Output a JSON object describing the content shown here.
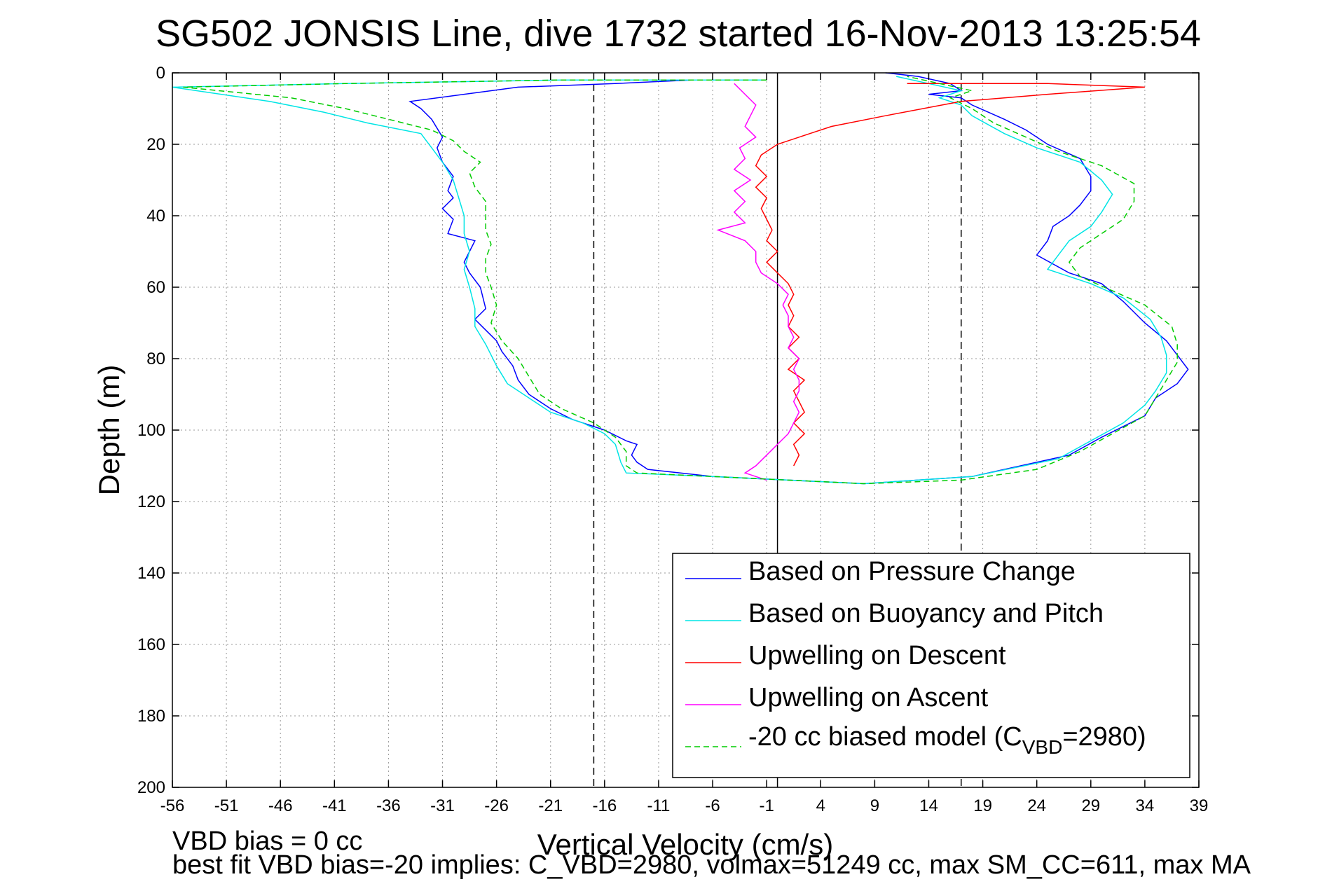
{
  "chart_data": {
    "type": "line",
    "title": "SG502 JONSIS Line, dive 1732 started 16-Nov-2013 13:25:54",
    "xlabel": "Vertical Velocity (cm/s)",
    "ylabel": "Depth (m)",
    "xlim": [
      -56,
      39
    ],
    "ylim": [
      0,
      200
    ],
    "y_reversed": true,
    "grid": true,
    "x_ticks": [
      -56,
      -51,
      -46,
      -41,
      -36,
      -31,
      -26,
      -21,
      -16,
      -11,
      -6,
      -1,
      4,
      9,
      14,
      19,
      24,
      29,
      34,
      39
    ],
    "y_ticks": [
      0,
      20,
      40,
      60,
      80,
      100,
      120,
      140,
      160,
      180,
      200
    ],
    "reference_lines": [
      {
        "x": -17,
        "style": "dashed"
      },
      {
        "x": 0,
        "style": "solid"
      },
      {
        "x": 17,
        "style": "dashed"
      }
    ],
    "legend_position": "bottom-right",
    "series": [
      {
        "name": "Based on Pressure Change",
        "color": "#0000ff",
        "style": "solid",
        "points": [
          [
            -1,
            2
          ],
          [
            -8,
            2
          ],
          [
            -15,
            3
          ],
          [
            -24,
            4
          ],
          [
            -34,
            8
          ],
          [
            -33,
            10
          ],
          [
            -32,
            13
          ],
          [
            -31,
            18
          ],
          [
            -31.5,
            21
          ],
          [
            -31,
            25
          ],
          [
            -30,
            29
          ],
          [
            -30.5,
            33
          ],
          [
            -30,
            35
          ],
          [
            -31,
            38
          ],
          [
            -30,
            41
          ],
          [
            -30.5,
            45
          ],
          [
            -28,
            47
          ],
          [
            -28.5,
            50
          ],
          [
            -29,
            53
          ],
          [
            -28.5,
            56
          ],
          [
            -27.5,
            60
          ],
          [
            -27,
            66
          ],
          [
            -28,
            69
          ],
          [
            -27,
            72
          ],
          [
            -26,
            75
          ],
          [
            -25.5,
            78
          ],
          [
            -24.5,
            82
          ],
          [
            -24,
            86
          ],
          [
            -23,
            90
          ],
          [
            -21,
            94
          ],
          [
            -19,
            97
          ],
          [
            -16,
            100
          ],
          [
            -14,
            103
          ],
          [
            -13,
            104
          ],
          [
            -13.5,
            107
          ],
          [
            -13,
            109
          ],
          [
            -12,
            111
          ],
          [
            -6,
            113
          ],
          [
            1,
            114
          ],
          [
            8,
            115
          ],
          [
            18,
            113
          ],
          [
            27,
            107
          ],
          [
            30,
            102
          ],
          [
            34,
            96
          ],
          [
            35,
            91
          ],
          [
            37,
            87
          ],
          [
            38,
            83
          ],
          [
            37,
            79
          ],
          [
            36,
            75
          ],
          [
            34,
            70
          ],
          [
            32,
            64
          ],
          [
            30,
            59
          ],
          [
            27,
            56
          ],
          [
            24,
            51
          ],
          [
            25,
            47
          ],
          [
            25.5,
            43
          ],
          [
            27,
            40
          ],
          [
            28,
            37
          ],
          [
            29,
            33
          ],
          [
            29,
            29
          ],
          [
            28,
            24
          ],
          [
            25,
            20
          ],
          [
            23,
            16
          ],
          [
            21,
            13
          ],
          [
            18,
            9
          ],
          [
            17,
            7
          ],
          [
            14,
            6
          ],
          [
            17,
            5
          ],
          [
            16,
            3
          ],
          [
            13,
            1
          ],
          [
            10,
            0
          ]
        ]
      },
      {
        "name": "Based on Buoyancy and Pitch",
        "color": "#00e5e5",
        "style": "solid",
        "points": [
          [
            -1,
            2
          ],
          [
            -20,
            2
          ],
          [
            -40,
            3
          ],
          [
            -56,
            4
          ],
          [
            -47,
            8
          ],
          [
            -42,
            11
          ],
          [
            -38,
            14
          ],
          [
            -33,
            17
          ],
          [
            -32,
            21
          ],
          [
            -31,
            25
          ],
          [
            -30,
            30
          ],
          [
            -29.5,
            35
          ],
          [
            -29,
            40
          ],
          [
            -29,
            45
          ],
          [
            -28.5,
            50
          ],
          [
            -29,
            55
          ],
          [
            -28.5,
            60
          ],
          [
            -28,
            66
          ],
          [
            -28,
            71
          ],
          [
            -27,
            76
          ],
          [
            -26,
            82
          ],
          [
            -25,
            87
          ],
          [
            -23,
            91
          ],
          [
            -21,
            95
          ],
          [
            -18,
            98
          ],
          [
            -16,
            101
          ],
          [
            -15,
            104
          ],
          [
            -14.5,
            109
          ],
          [
            -14,
            112
          ],
          [
            -6,
            113
          ],
          [
            1,
            114
          ],
          [
            8,
            115
          ],
          [
            18,
            113
          ],
          [
            26,
            108
          ],
          [
            29,
            103
          ],
          [
            32,
            98
          ],
          [
            34,
            93
          ],
          [
            35,
            89
          ],
          [
            36,
            84
          ],
          [
            36,
            79
          ],
          [
            35.5,
            74
          ],
          [
            34.5,
            69
          ],
          [
            32,
            63
          ],
          [
            29,
            59
          ],
          [
            25,
            55
          ],
          [
            26,
            51
          ],
          [
            27,
            47
          ],
          [
            29,
            43
          ],
          [
            30,
            39
          ],
          [
            31,
            34
          ],
          [
            30,
            30
          ],
          [
            28,
            25
          ],
          [
            24,
            21
          ],
          [
            21,
            17
          ],
          [
            18,
            12
          ],
          [
            17,
            9
          ],
          [
            15,
            7
          ],
          [
            17,
            5
          ],
          [
            14,
            3
          ],
          [
            11,
            1
          ]
        ]
      },
      {
        "name": "Upwelling on Descent",
        "color": "#ff0000",
        "style": "solid",
        "points": [
          [
            12,
            3
          ],
          [
            25,
            3
          ],
          [
            34,
            4
          ],
          [
            25,
            6
          ],
          [
            17,
            8
          ],
          [
            10,
            12
          ],
          [
            5,
            15
          ],
          [
            3,
            17
          ],
          [
            0,
            20
          ],
          [
            -1.5,
            23
          ],
          [
            -2,
            26
          ],
          [
            -1,
            29
          ],
          [
            -2,
            32
          ],
          [
            -1,
            35
          ],
          [
            -1.5,
            38
          ],
          [
            -1,
            41
          ],
          [
            -0.5,
            44
          ],
          [
            -1,
            47
          ],
          [
            0,
            50
          ],
          [
            -1,
            53
          ],
          [
            0,
            56
          ],
          [
            1,
            59
          ],
          [
            1.5,
            62
          ],
          [
            1,
            65
          ],
          [
            1.5,
            68
          ],
          [
            1,
            71
          ],
          [
            2,
            74
          ],
          [
            1,
            77
          ],
          [
            2,
            80
          ],
          [
            1,
            83
          ],
          [
            2.5,
            86
          ],
          [
            1.5,
            89
          ],
          [
            2,
            92
          ],
          [
            2.5,
            95
          ],
          [
            1.5,
            98
          ],
          [
            2.5,
            101
          ],
          [
            1.5,
            104
          ],
          [
            2,
            107
          ],
          [
            1.5,
            110
          ]
        ]
      },
      {
        "name": "Upwelling on Ascent",
        "color": "#ff00ff",
        "style": "solid",
        "points": [
          [
            -4,
            3
          ],
          [
            -3,
            6
          ],
          [
            -2,
            9
          ],
          [
            -2.5,
            12
          ],
          [
            -3,
            15
          ],
          [
            -2,
            18
          ],
          [
            -3.5,
            21
          ],
          [
            -3,
            24
          ],
          [
            -4,
            27
          ],
          [
            -2.5,
            30
          ],
          [
            -4,
            33
          ],
          [
            -3,
            36
          ],
          [
            -4,
            39
          ],
          [
            -3,
            42
          ],
          [
            -5.5,
            44
          ],
          [
            -3,
            47
          ],
          [
            -2,
            50
          ],
          [
            -2,
            53
          ],
          [
            -1.5,
            56
          ],
          [
            0,
            59
          ],
          [
            1,
            62
          ],
          [
            0.5,
            65
          ],
          [
            1,
            68
          ],
          [
            1,
            71
          ],
          [
            1.5,
            74
          ],
          [
            1,
            77
          ],
          [
            2,
            80
          ],
          [
            1.5,
            83
          ],
          [
            2,
            86
          ],
          [
            2,
            89
          ],
          [
            1.5,
            92
          ],
          [
            2,
            95
          ],
          [
            1.5,
            98
          ],
          [
            1,
            101
          ],
          [
            0,
            104
          ],
          [
            -1,
            107
          ],
          [
            -2,
            110
          ],
          [
            -3,
            112
          ],
          [
            -2,
            113
          ],
          [
            -1,
            114
          ]
        ]
      },
      {
        "name": "-20 cc biased model (C_VBD=2980)",
        "legend_label_main": "-20 cc biased model (C",
        "legend_label_sub": "VBD",
        "legend_label_tail": "=2980)",
        "color": "#00cc00",
        "style": "dashed",
        "points": [
          [
            -1,
            2
          ],
          [
            -20,
            2
          ],
          [
            -40,
            3
          ],
          [
            -55,
            4
          ],
          [
            -45,
            7
          ],
          [
            -40,
            10
          ],
          [
            -36,
            13
          ],
          [
            -32,
            16
          ],
          [
            -30,
            19
          ],
          [
            -29,
            22
          ],
          [
            -27.5,
            25
          ],
          [
            -28.5,
            28
          ],
          [
            -28,
            32
          ],
          [
            -27,
            36
          ],
          [
            -27,
            40
          ],
          [
            -27,
            44
          ],
          [
            -26.5,
            48
          ],
          [
            -27,
            52
          ],
          [
            -27,
            56
          ],
          [
            -26.5,
            60
          ],
          [
            -26,
            65
          ],
          [
            -26.5,
            70
          ],
          [
            -25.5,
            75
          ],
          [
            -24,
            80
          ],
          [
            -23,
            85
          ],
          [
            -22,
            90
          ],
          [
            -20,
            94
          ],
          [
            -17,
            98
          ],
          [
            -15,
            102
          ],
          [
            -14,
            106
          ],
          [
            -14,
            110
          ],
          [
            -13,
            112
          ],
          [
            -6,
            113
          ],
          [
            1,
            114
          ],
          [
            8,
            115
          ],
          [
            17,
            114
          ],
          [
            24,
            111
          ],
          [
            28,
            106
          ],
          [
            31,
            101
          ],
          [
            34,
            96
          ],
          [
            35,
            91
          ],
          [
            36,
            86
          ],
          [
            37,
            81
          ],
          [
            37,
            76
          ],
          [
            36.5,
            71
          ],
          [
            34,
            65
          ],
          [
            31,
            61
          ],
          [
            28,
            57
          ],
          [
            27,
            53
          ],
          [
            28,
            49
          ],
          [
            30,
            45
          ],
          [
            32,
            41
          ],
          [
            33,
            36
          ],
          [
            33,
            31
          ],
          [
            30,
            26
          ],
          [
            26,
            22
          ],
          [
            23,
            18
          ],
          [
            20,
            14
          ],
          [
            18,
            10
          ],
          [
            16,
            7
          ],
          [
            18,
            5
          ],
          [
            15,
            3
          ],
          [
            12,
            1
          ]
        ]
      }
    ]
  },
  "footnotes": {
    "line1": "VBD bias = 0 cc",
    "line2": "best fit VBD bias=-20 implies: C_VBD=2980, volmax=51249 cc, max SM_CC=611, max MA"
  }
}
